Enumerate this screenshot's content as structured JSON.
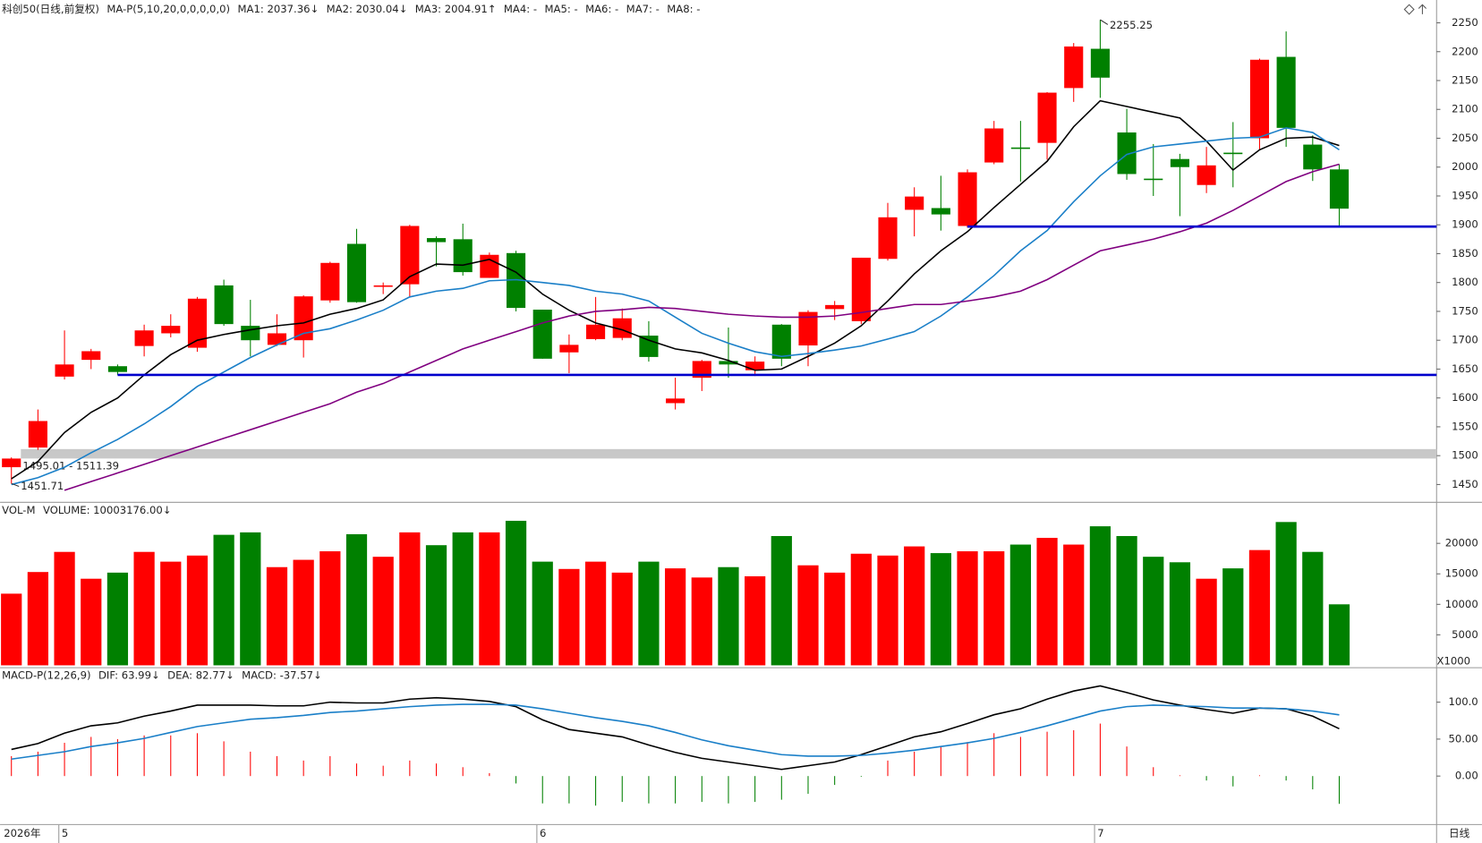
{
  "chart_data": [
    {
      "type": "candlestick",
      "title": "科创50(日线,前复权)",
      "indicator": "MA-P(5,10,20,0,0,0,0,0)",
      "up_color": "#ff0000",
      "down_color": "#008000",
      "categories": [
        null,
        null,
        "5",
        null,
        null,
        null,
        null,
        null,
        null,
        null,
        null,
        null,
        null,
        null,
        null,
        null,
        null,
        null,
        null,
        null,
        "6",
        null,
        null,
        null,
        null,
        null,
        null,
        null,
        null,
        null,
        null,
        null,
        null,
        null,
        null,
        null,
        null,
        null,
        null,
        null,
        null,
        "7",
        null,
        null,
        null,
        null,
        null,
        null,
        null,
        null,
        null
      ],
      "year_label": "2026年",
      "period_label": "日线",
      "open": [
        1480,
        1514,
        1637,
        1666,
        1655,
        1690,
        1712,
        1687,
        1795,
        1725,
        1692,
        1700,
        1769,
        1867,
        1793,
        1797,
        1877,
        1875,
        1808,
        1851,
        1753,
        1679,
        1702,
        1704,
        1708,
        1591,
        1635,
        1664,
        1648,
        1727,
        1691,
        1754,
        1733,
        1841,
        1926,
        1929,
        1898,
        2008,
        2034,
        2042,
        2137,
        2205,
        2060,
        1980,
        2014,
        1969,
        2025,
        2050,
        2191,
        2039,
        1996
      ],
      "high": [
        1497,
        1580,
        1717,
        1685,
        1658,
        1727,
        1745,
        1775,
        1805,
        1770,
        1745,
        1778,
        1836,
        1893,
        1800,
        1900,
        1880,
        1902,
        1852,
        1855,
        1753,
        1710,
        1775,
        1755,
        1733,
        1635,
        1666,
        1722,
        1672,
        1728,
        1752,
        1768,
        1843,
        1938,
        1965,
        1985,
        1996,
        2080,
        2080,
        2130,
        2215,
        2255.25,
        2101,
        2040,
        2023,
        2035,
        2078,
        2188,
        2235,
        2055,
        2005
      ],
      "low": [
        1451.71,
        1510,
        1632,
        1650,
        1640,
        1672,
        1705,
        1680,
        1725,
        1672,
        1690,
        1670,
        1765,
        1765,
        1780,
        1775,
        1828,
        1812,
        1808,
        1750,
        1668,
        1643,
        1700,
        1700,
        1663,
        1580,
        1612,
        1635,
        1638,
        1655,
        1655,
        1735,
        1728,
        1838,
        1880,
        1890,
        1895,
        2005,
        1975,
        2013,
        2113,
        2120,
        1978,
        1950,
        1915,
        1955,
        1965,
        2030,
        2035,
        1976,
        1897
      ],
      "close": [
        1495,
        1560,
        1658,
        1681,
        1645,
        1717,
        1725,
        1772,
        1728,
        1700,
        1712,
        1776,
        1834,
        1766,
        1795,
        1898,
        1870,
        1818,
        1848,
        1756,
        1668,
        1692,
        1727,
        1738,
        1671,
        1599,
        1664,
        1658,
        1663,
        1668,
        1749,
        1761,
        1843,
        1913,
        1949,
        1918,
        1991,
        2067,
        2033,
        2129,
        2209,
        2155,
        1988,
        1979,
        2000,
        2003,
        2024,
        2186,
        2068,
        1996,
        1928
      ],
      "series": [
        {
          "name": "MA1: 2037.36↓",
          "color": "#000000",
          "values": [
            1460,
            1490,
            1540,
            1575,
            1600,
            1640,
            1675,
            1700,
            1710,
            1718,
            1725,
            1730,
            1745,
            1755,
            1770,
            1810,
            1832,
            1830,
            1840,
            1818,
            1780,
            1752,
            1730,
            1718,
            1700,
            1685,
            1678,
            1665,
            1648,
            1650,
            1672,
            1695,
            1725,
            1768,
            1815,
            1855,
            1888,
            1930,
            1970,
            2010,
            2070,
            2115,
            2105,
            2095,
            2085,
            2045,
            1995,
            2030,
            2050,
            2052,
            2037.36
          ]
        },
        {
          "name": "MA2: 2030.04↓",
          "color": "#1a7fc8",
          "values": [
            1450,
            1462,
            1480,
            1505,
            1528,
            1555,
            1585,
            1620,
            1645,
            1670,
            1692,
            1712,
            1720,
            1735,
            1752,
            1775,
            1785,
            1790,
            1803,
            1805,
            1800,
            1795,
            1785,
            1780,
            1768,
            1740,
            1712,
            1695,
            1680,
            1672,
            1677,
            1683,
            1690,
            1702,
            1715,
            1742,
            1775,
            1812,
            1855,
            1890,
            1940,
            1985,
            2022,
            2035,
            2040,
            2045,
            2050,
            2052,
            2068,
            2060,
            2030.04
          ]
        },
        {
          "name": "MA3: 2004.91↑",
          "color": "#800080",
          "values": [
            null,
            null,
            1440,
            1455,
            1470,
            1485,
            1500,
            1515,
            1530,
            1545,
            1560,
            1575,
            1590,
            1610,
            1625,
            1645,
            1665,
            1685,
            1700,
            1715,
            1730,
            1742,
            1750,
            1753,
            1757,
            1755,
            1750,
            1745,
            1742,
            1740,
            1740,
            1742,
            1748,
            1755,
            1762,
            1762,
            1768,
            1775,
            1785,
            1805,
            1830,
            1855,
            1865,
            1875,
            1888,
            1903,
            1925,
            1950,
            1975,
            1992,
            2004.91
          ]
        }
      ],
      "extra_legend": [
        {
          "name": "MA4: -",
          "color": "#999999"
        },
        {
          "name": "MA5: -",
          "color": "#008000"
        },
        {
          "name": "MA6: -",
          "color": "#20b2c8"
        },
        {
          "name": "MA7: -",
          "color": "#555555"
        },
        {
          "name": "MA8: -",
          "color": "#1a7fc8"
        }
      ],
      "hlines": [
        {
          "value": 1897,
          "start": 36,
          "color": "#0000cc"
        },
        {
          "value": 1640,
          "start": 4,
          "color": "#0000cc"
        }
      ],
      "band": {
        "range": [
          1495.01,
          1511.39
        ],
        "label": "1495.01 - 1511.39",
        "color": "#c8c8c8"
      },
      "ylim": [
        1420,
        2283
      ],
      "yticks": [
        1450,
        1500,
        1550,
        1600,
        1650,
        1700,
        1750,
        1800,
        1850,
        1900,
        1950,
        2000,
        2050,
        2100,
        2150,
        2200,
        2250
      ]
    },
    {
      "type": "bar",
      "title": "VOL-M",
      "series": [
        {
          "name": "VOLUME: 10003176.00↓",
          "values": [
            11750,
            15300,
            18600,
            14200,
            15200,
            18600,
            17000,
            18000,
            21400,
            21800,
            16100,
            17300,
            18700,
            21500,
            17800,
            21800,
            19700,
            21800,
            21800,
            23700,
            17000,
            15800,
            17000,
            15200,
            17000,
            15900,
            14400,
            16100,
            14600,
            21200,
            16400,
            15200,
            18300,
            18000,
            19500,
            18400,
            18700,
            18700,
            19800,
            20900,
            19800,
            22800,
            21200,
            17800,
            16900,
            14200,
            15900,
            18900,
            23500,
            18600,
            10003.176
          ]
        }
      ],
      "unit_label": "X1000",
      "ylim": [
        0,
        26500
      ],
      "yticks": [
        5000,
        10000,
        15000,
        20000
      ]
    },
    {
      "type": "macd",
      "title": "MACD-P(12,26,9)",
      "series": [
        {
          "name": "DIF: 63.99↓",
          "color": "#000000",
          "values": [
            36,
            44,
            58,
            68,
            72,
            81,
            88,
            96,
            96,
            96,
            95,
            95,
            100,
            99,
            99,
            104,
            106,
            104,
            101,
            94,
            76,
            63,
            58,
            53,
            42,
            32,
            24,
            19,
            14,
            9,
            14,
            19,
            29,
            41,
            53,
            60,
            71,
            83,
            91,
            104,
            115,
            122,
            113,
            103,
            96,
            90,
            85,
            92,
            91,
            81,
            63.99
          ]
        },
        {
          "name": "DEA: 82.77↓",
          "color": "#1a7fc8",
          "values": [
            23,
            28,
            33,
            40,
            45,
            51,
            59,
            67,
            72,
            77,
            79,
            82,
            86,
            88,
            91,
            94,
            96,
            97,
            97,
            96,
            91,
            85,
            79,
            74,
            68,
            59,
            49,
            41,
            35,
            29,
            27,
            27,
            28,
            31,
            35,
            40,
            45,
            51,
            59,
            68,
            78,
            88,
            94,
            96,
            95,
            94,
            92,
            92,
            91,
            88,
            82.77
          ]
        },
        {
          "name": "MACD: -37.57↓",
          "color": "#ff0000",
          "neg_color": "#008000",
          "values": [
            27,
            33,
            45,
            53,
            50,
            55,
            55,
            58,
            47,
            33,
            27,
            21,
            27,
            17,
            14,
            21,
            17,
            12,
            4,
            -10,
            -37,
            -37,
            -40,
            -35,
            -37,
            -37,
            -35,
            -37,
            -35,
            -32,
            -24,
            -12,
            -1,
            21,
            33,
            40,
            46,
            58,
            53,
            60,
            62,
            71,
            40,
            12,
            1,
            -6,
            -14,
            1,
            -6,
            -18,
            -37.57
          ]
        }
      ],
      "ylim": [
        -65,
        146
      ],
      "yticks": [
        {
          "value": 100,
          "label": "100.0"
        },
        {
          "value": 50,
          "label": "50.00"
        },
        {
          "value": 0,
          "label": "0.00"
        }
      ]
    }
  ]
}
